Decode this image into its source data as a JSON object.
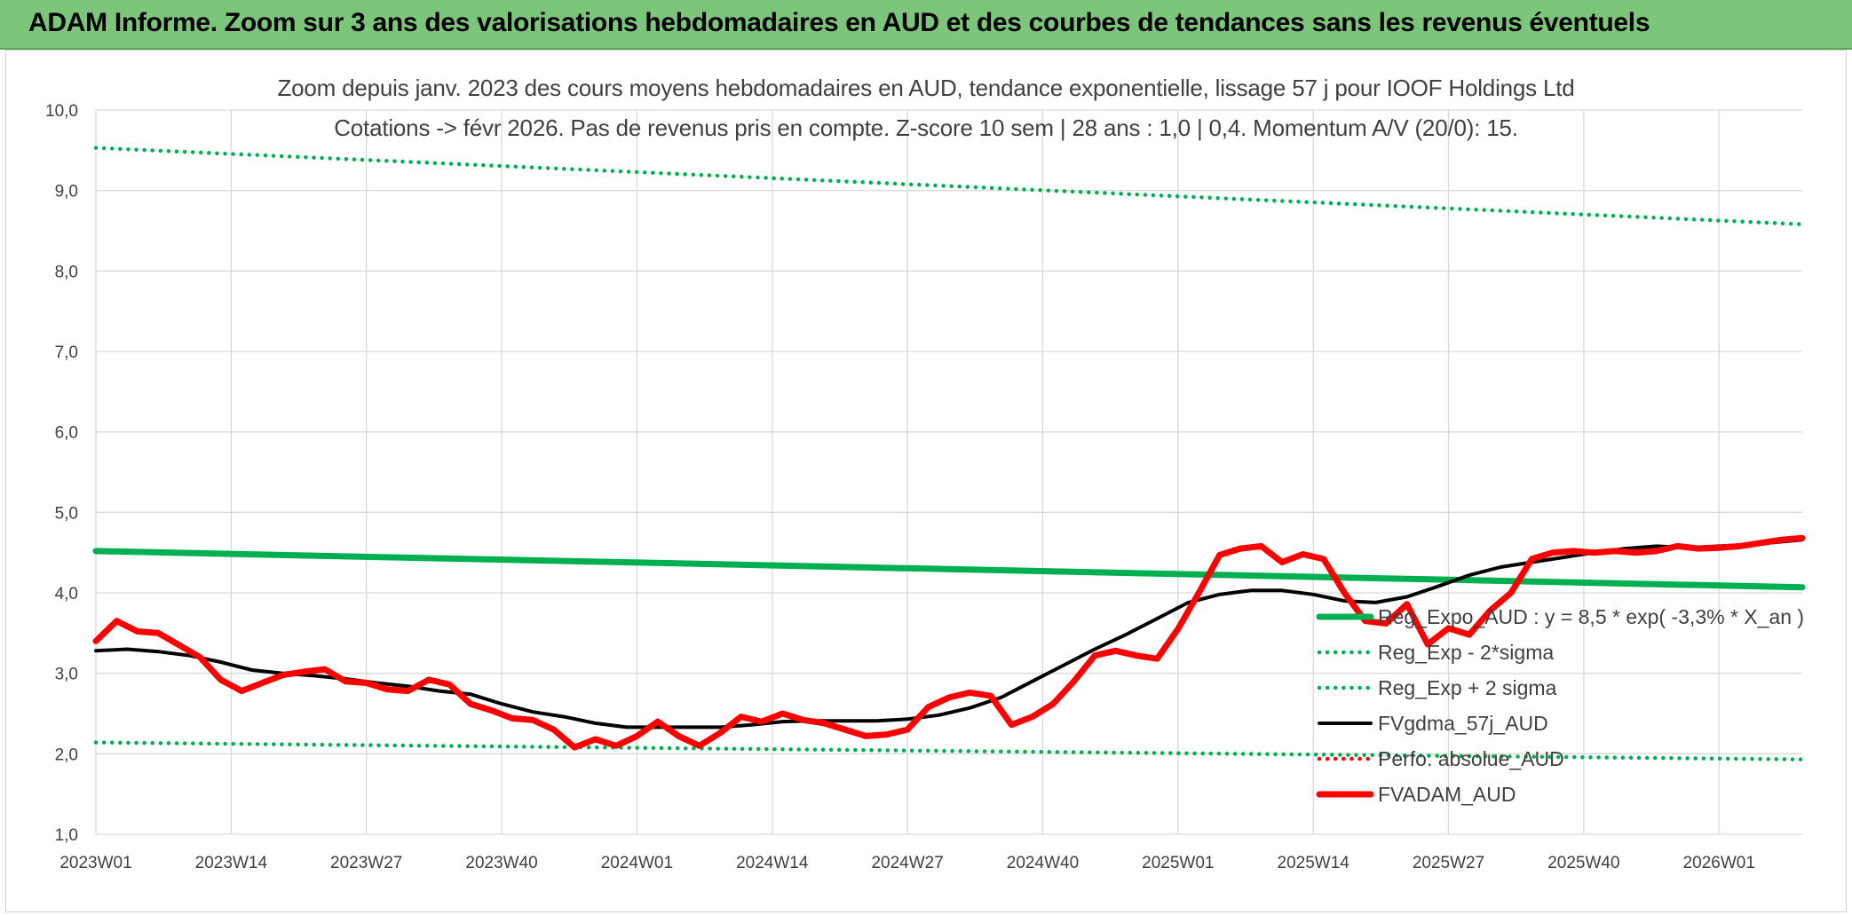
{
  "banner": {
    "title": "ADAM Informe. Zoom sur 3 ans des valorisations hebdomadaires en AUD et des courbes de tendances sans les revenus éventuels"
  },
  "colors": {
    "banner_bg": "#7bc67b",
    "reg_expo": "#00b050",
    "fvgdma": "#000000",
    "fvadam": "#ff0000",
    "gridline": "#d9d9d9"
  },
  "chart_data": {
    "type": "line",
    "title_line1": "Zoom depuis janv. 2023 des cours moyens hebdomadaires en AUD, tendance exponentielle, lissage 57 j pour IOOF Holdings Ltd",
    "title_line2": "Cotations -> févr 2026. Pas de revenus pris en compte. Z-score 10 sem | 28 ans : 1,0 | 0,4. Momentum A/V (20/0): 15.",
    "xlabel": "",
    "ylabel": "",
    "ylim": [
      1.0,
      10.0
    ],
    "y_ticks": [
      "1,0",
      "2,0",
      "3,0",
      "4,0",
      "5,0",
      "6,0",
      "7,0",
      "8,0",
      "9,0",
      "10,0"
    ],
    "x_ticks": [
      "2023W01",
      "2023W14",
      "2023W27",
      "2023W40",
      "2024W01",
      "2024W14",
      "2024W27",
      "2024W40",
      "2025W01",
      "2025W14",
      "2025W27",
      "2025W40",
      "2026W01"
    ],
    "x_tick_weeks": [
      0,
      13,
      26,
      39,
      52,
      65,
      78,
      91,
      104,
      117,
      130,
      143,
      156
    ],
    "x_last_week": 164,
    "grid": true,
    "legend_position": "bottom-right",
    "series": [
      {
        "name": "Reg_Expo_AUD : y = 8,5 * exp( -3,3% *  X_an )",
        "style": "solid-thick",
        "color": "#00b050",
        "x_weeks": [
          0,
          164
        ],
        "values": [
          4.52,
          4.07
        ]
      },
      {
        "name": "Reg_Exp - 2*sigma",
        "style": "dotted",
        "color": "#00b050",
        "x_weeks": [
          0,
          164
        ],
        "values": [
          2.14,
          1.93
        ]
      },
      {
        "name": "Reg_Exp + 2 sigma",
        "style": "dotted",
        "color": "#00b050",
        "x_weeks": [
          0,
          164
        ],
        "values": [
          9.53,
          8.58
        ]
      },
      {
        "name": "FVgdma_57j_AUD",
        "style": "solid",
        "color": "#000000",
        "x_weeks": [
          0,
          3,
          6,
          9,
          12,
          15,
          18,
          21,
          24,
          27,
          30,
          33,
          36,
          39,
          42,
          45,
          48,
          51,
          54,
          57,
          60,
          63,
          66,
          69,
          72,
          75,
          78,
          81,
          84,
          87,
          90,
          93,
          96,
          99,
          102,
          105,
          108,
          111,
          114,
          117,
          120,
          123,
          126,
          129,
          132,
          135,
          138,
          141,
          144,
          147,
          150,
          153,
          156,
          159,
          164
        ],
        "values": [
          3.28,
          3.3,
          3.27,
          3.22,
          3.14,
          3.04,
          3.0,
          2.97,
          2.93,
          2.88,
          2.84,
          2.78,
          2.74,
          2.62,
          2.52,
          2.46,
          2.38,
          2.33,
          2.33,
          2.33,
          2.33,
          2.36,
          2.4,
          2.41,
          2.41,
          2.41,
          2.43,
          2.48,
          2.57,
          2.7,
          2.9,
          3.1,
          3.3,
          3.48,
          3.68,
          3.88,
          3.98,
          4.03,
          4.03,
          3.98,
          3.9,
          3.88,
          3.95,
          4.08,
          4.22,
          4.32,
          4.38,
          4.44,
          4.5,
          4.55,
          4.58,
          4.56,
          4.58,
          4.6,
          4.66
        ]
      },
      {
        "name": "Perfo. absolue_AUD",
        "style": "dotted",
        "color": "#ff0000",
        "x_weeks": [],
        "values": []
      },
      {
        "name": "FVADAM_AUD",
        "style": "solid-thick",
        "color": "#ff0000",
        "x_weeks": [
          0,
          2,
          4,
          6,
          8,
          10,
          12,
          14,
          16,
          18,
          20,
          22,
          24,
          26,
          28,
          30,
          32,
          34,
          36,
          38,
          40,
          42,
          44,
          46,
          48,
          50,
          52,
          54,
          56,
          58,
          60,
          62,
          64,
          66,
          68,
          70,
          72,
          74,
          76,
          78,
          80,
          82,
          84,
          86,
          88,
          90,
          92,
          94,
          96,
          98,
          100,
          102,
          104,
          106,
          108,
          110,
          112,
          114,
          116,
          118,
          120,
          122,
          124,
          126,
          128,
          130,
          132,
          134,
          136,
          138,
          140,
          142,
          144,
          146,
          148,
          150,
          152,
          154,
          156,
          158,
          160,
          162,
          164
        ],
        "values": [
          3.4,
          3.65,
          3.52,
          3.5,
          3.35,
          3.2,
          2.92,
          2.78,
          2.88,
          2.98,
          3.02,
          3.05,
          2.9,
          2.88,
          2.8,
          2.78,
          2.92,
          2.86,
          2.62,
          2.54,
          2.44,
          2.42,
          2.3,
          2.08,
          2.18,
          2.1,
          2.22,
          2.4,
          2.22,
          2.1,
          2.26,
          2.46,
          2.4,
          2.5,
          2.42,
          2.38,
          2.3,
          2.22,
          2.24,
          2.3,
          2.58,
          2.7,
          2.76,
          2.72,
          2.36,
          2.46,
          2.62,
          2.9,
          3.22,
          3.28,
          3.22,
          3.18,
          3.55,
          4.0,
          4.47,
          4.55,
          4.58,
          4.38,
          4.48,
          4.42,
          4.0,
          3.65,
          3.62,
          3.86,
          3.36,
          3.56,
          3.48,
          3.78,
          4.0,
          4.42,
          4.5,
          4.52,
          4.5,
          4.52,
          4.5,
          4.52,
          4.58,
          4.55,
          4.56,
          4.58,
          4.62,
          4.66,
          4.68
        ]
      }
    ]
  }
}
